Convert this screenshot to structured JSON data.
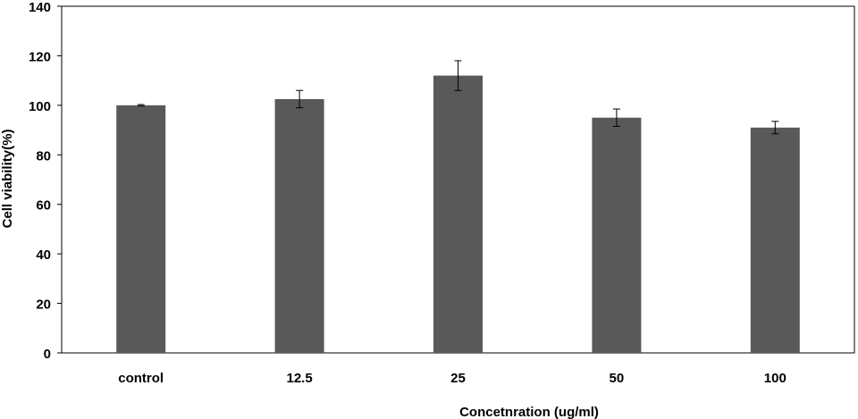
{
  "chart_data": {
    "type": "bar",
    "title": "",
    "xlabel": "Concetnration (ug/ml)",
    "ylabel": "Cell viability(%)",
    "categories": [
      "control",
      "12.5",
      "25",
      "50",
      "100"
    ],
    "series": [
      {
        "values": [
          100,
          102.5,
          112,
          95,
          91
        ],
        "error": [
          0.3,
          3.5,
          6.0,
          3.5,
          2.5
        ]
      }
    ],
    "ylim": [
      0,
      140
    ],
    "yticks": [
      "0",
      "20",
      "40",
      "60",
      "80",
      "100",
      "120",
      "140"
    ],
    "grid": false,
    "legend": "none",
    "bar_color": "#595959"
  }
}
